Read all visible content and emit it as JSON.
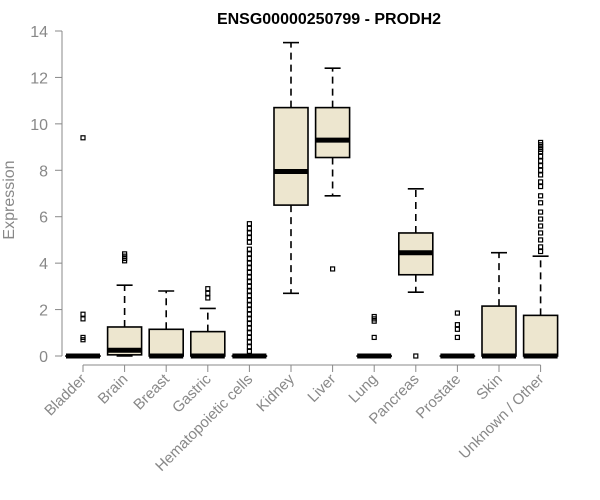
{
  "chart_data": {
    "type": "boxplot",
    "title": "ENSG00000250799 - PRODH2",
    "xlabel": "",
    "ylabel": "Expression",
    "ylim": [
      0,
      14
    ],
    "yticks": [
      0,
      2,
      4,
      6,
      8,
      10,
      12,
      14
    ],
    "box_color": "#EDE6CF",
    "line_color": "#000000",
    "axis_color": "#888888",
    "categories": [
      "Bladder",
      "Brain",
      "Breast",
      "Gastric",
      "Hematopoietic cells",
      "Kidney",
      "Liver",
      "Lung",
      "Pancreas",
      "Prostate",
      "Skin",
      "Unknown / Other"
    ],
    "boxes": [
      {
        "name": "Bladder",
        "whisker_low": 0,
        "q1": 0,
        "median": 0,
        "q3": 0,
        "whisker_high": 0,
        "outliers": [
          9.4,
          1.8,
          1.6,
          0.8,
          0.7
        ]
      },
      {
        "name": "Brain",
        "whisker_low": 0,
        "q1": 0.05,
        "median": 0.25,
        "q3": 1.25,
        "whisker_high": 3.05,
        "outliers": [
          4.4,
          4.3,
          4.2,
          4.1
        ]
      },
      {
        "name": "Breast",
        "whisker_low": 0,
        "q1": 0,
        "median": 0,
        "q3": 1.15,
        "whisker_high": 2.8,
        "outliers": []
      },
      {
        "name": "Gastric",
        "whisker_low": 0,
        "q1": 0,
        "median": 0,
        "q3": 1.05,
        "whisker_high": 2.05,
        "outliers": [
          2.9,
          2.7,
          2.5
        ]
      },
      {
        "name": "Hematopoietic cells",
        "whisker_low": 0,
        "q1": 0,
        "median": 0,
        "q3": 0,
        "whisker_high": 0,
        "outliers": [
          5.7,
          5.5,
          5.3,
          5.1,
          4.9,
          4.6,
          4.4,
          4.2,
          4.0,
          3.8,
          3.6,
          3.4,
          3.2,
          3.0,
          2.8,
          2.6,
          2.4,
          2.2,
          2.0,
          1.8,
          1.6,
          1.4,
          1.2,
          1.0,
          0.8,
          0.6,
          0.4,
          0.2
        ]
      },
      {
        "name": "Kidney",
        "whisker_low": 2.7,
        "q1": 6.5,
        "median": 7.95,
        "q3": 10.7,
        "whisker_high": 13.5,
        "outliers": []
      },
      {
        "name": "Liver",
        "whisker_low": 6.9,
        "q1": 8.55,
        "median": 9.3,
        "q3": 10.7,
        "whisker_high": 12.4,
        "outliers": [
          3.75
        ]
      },
      {
        "name": "Lung",
        "whisker_low": 0,
        "q1": 0,
        "median": 0,
        "q3": 0,
        "whisker_high": 0,
        "outliers": [
          1.7,
          1.6,
          1.5,
          0.8
        ]
      },
      {
        "name": "Pancreas",
        "whisker_low": 2.75,
        "q1": 3.5,
        "median": 4.45,
        "q3": 5.3,
        "whisker_high": 7.2,
        "outliers": [
          0.0
        ]
      },
      {
        "name": "Prostate",
        "whisker_low": 0,
        "q1": 0,
        "median": 0,
        "q3": 0,
        "whisker_high": 0,
        "outliers": [
          1.85,
          1.35,
          1.15,
          0.8
        ]
      },
      {
        "name": "Skin",
        "whisker_low": 0,
        "q1": 0,
        "median": 0,
        "q3": 2.15,
        "whisker_high": 4.45,
        "outliers": []
      },
      {
        "name": "Unknown / Other",
        "whisker_low": 0,
        "q1": 0,
        "median": 0,
        "q3": 1.75,
        "whisker_high": 4.3,
        "outliers": [
          9.2,
          9.1,
          9.0,
          8.9,
          8.8,
          8.6,
          8.4,
          8.2,
          8.0,
          7.8,
          7.5,
          7.3,
          6.9,
          6.6,
          6.2,
          5.9,
          5.6,
          5.3,
          5.0,
          4.7,
          4.5
        ]
      }
    ]
  }
}
